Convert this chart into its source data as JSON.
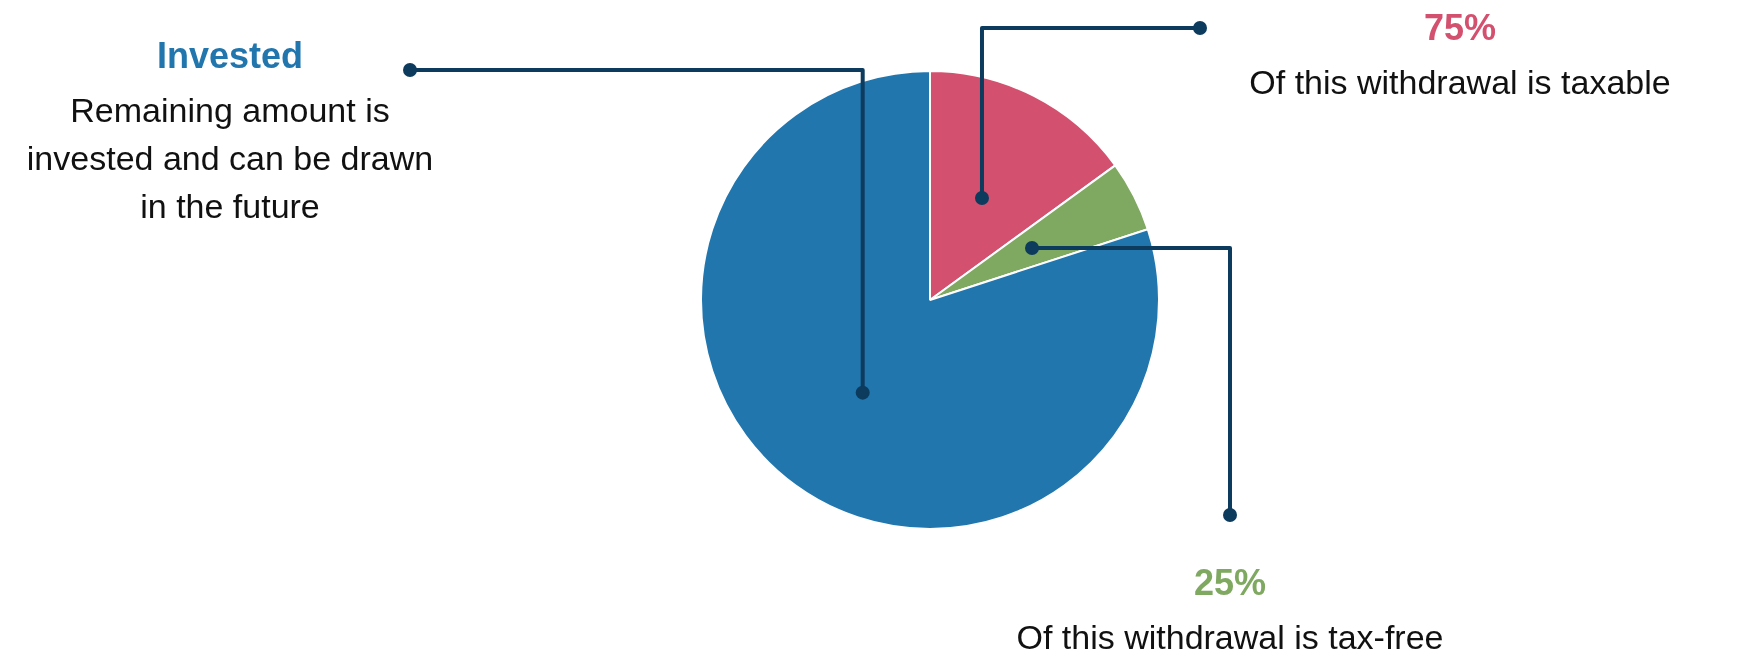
{
  "chart_data": {
    "type": "pie",
    "categories": [
      null,
      null,
      null
    ],
    "values": [
      15,
      5,
      80
    ],
    "colors": [
      "#d4506f",
      "#7fa860",
      "#2176ae"
    ],
    "annotations": [
      "75%",
      "Of this withdrawal is taxable",
      "25%",
      "Of this withdrawal is tax-free",
      "Invested",
      "Remaining amount is invested and can be drawn in the future"
    ],
    "legend": false
  }
}
